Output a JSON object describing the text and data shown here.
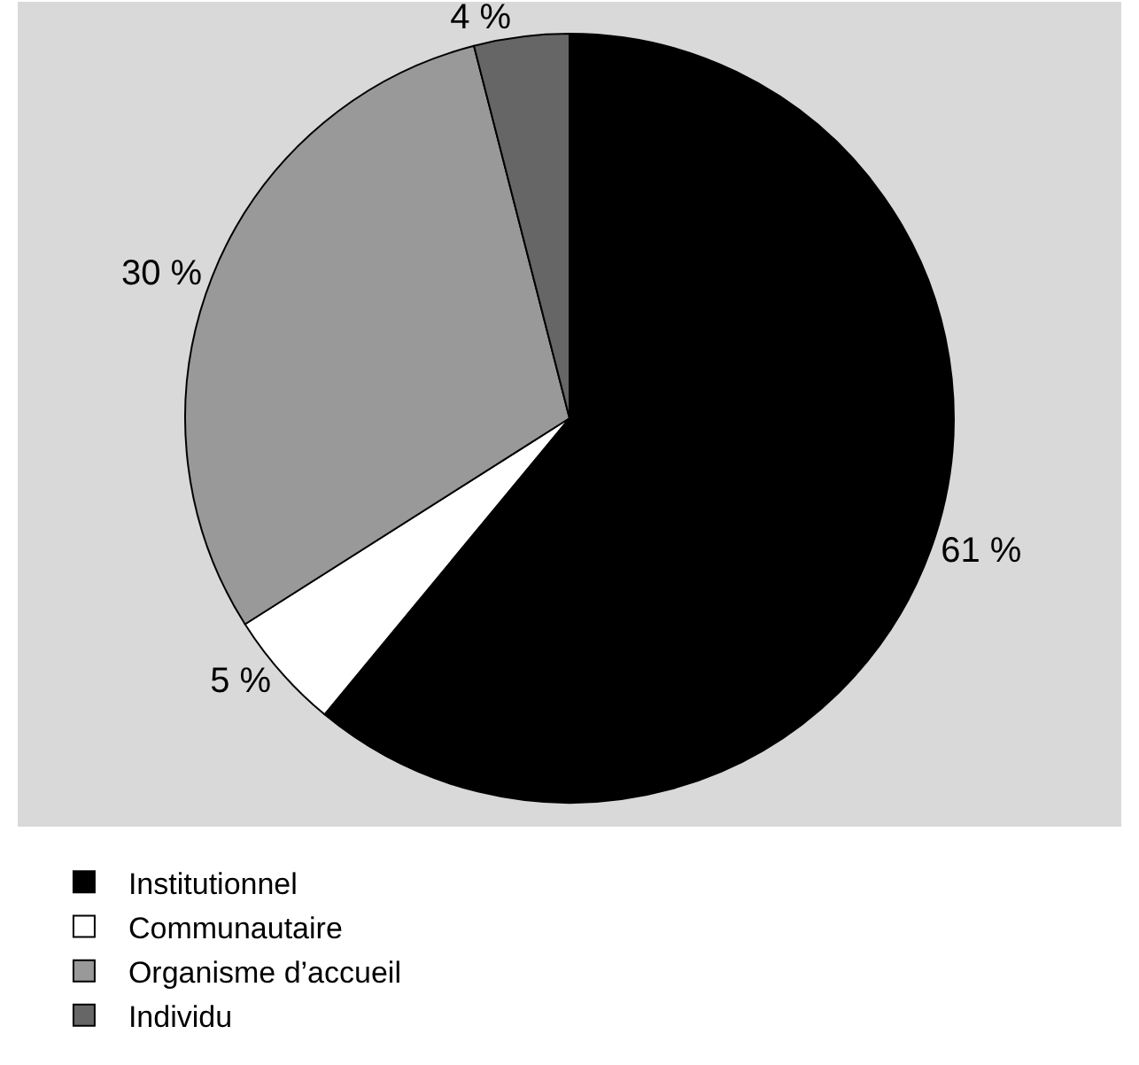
{
  "chart_data": {
    "type": "pie",
    "categories": [
      "Institutionnel",
      "Communautaire",
      "Organisme d’accueil",
      "Individu"
    ],
    "values": [
      61,
      5,
      30,
      4
    ],
    "value_labels": [
      "61 %",
      "5 %",
      "30 %",
      "4 %"
    ],
    "colors": [
      "#000000",
      "#ffffff",
      "#999999",
      "#666666"
    ],
    "legend": "bottom"
  }
}
